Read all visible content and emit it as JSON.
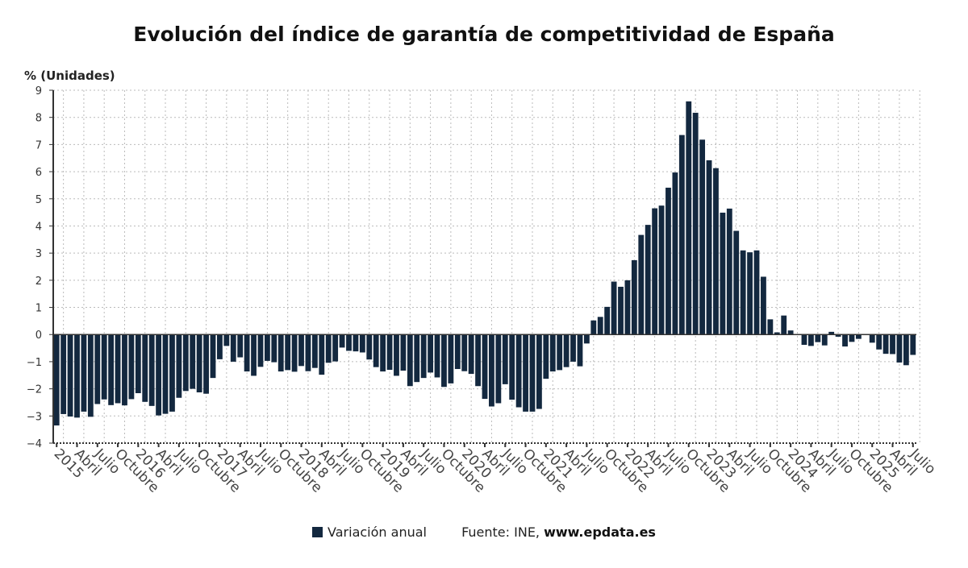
{
  "chart_data": {
    "type": "bar",
    "title": "Evolución del índice de garantía de competitividad de España",
    "ylabel": "% (Unidades)",
    "ylim": [
      -4,
      9
    ],
    "yticks": [
      -4,
      -3,
      -2,
      -1,
      0,
      1,
      2,
      3,
      4,
      5,
      6,
      7,
      8,
      9
    ],
    "grid": true,
    "legend_placement": "bottom",
    "start": "2015-01",
    "end": "2025-07",
    "month_labels": {
      "1": "",
      "4": "Abril",
      "7": "Julio",
      "10": "Octubre"
    },
    "series": [
      {
        "name": "Variación anual",
        "color": "#13283f",
        "values": [
          -3.35,
          -2.93,
          -3.02,
          -3.06,
          -2.84,
          -3.03,
          -2.56,
          -2.39,
          -2.6,
          -2.53,
          -2.61,
          -2.38,
          -2.16,
          -2.48,
          -2.63,
          -2.98,
          -2.92,
          -2.84,
          -2.33,
          -2.08,
          -2.0,
          -2.13,
          -2.18,
          -1.6,
          -0.91,
          -0.42,
          -1.0,
          -0.84,
          -1.36,
          -1.52,
          -1.19,
          -0.97,
          -1.02,
          -1.36,
          -1.31,
          -1.37,
          -1.16,
          -1.35,
          -1.23,
          -1.48,
          -1.04,
          -0.99,
          -0.48,
          -0.6,
          -0.62,
          -0.66,
          -0.92,
          -1.2,
          -1.36,
          -1.3,
          -1.52,
          -1.33,
          -1.9,
          -1.75,
          -1.6,
          -1.4,
          -1.58,
          -1.93,
          -1.8,
          -1.27,
          -1.35,
          -1.45,
          -1.9,
          -2.37,
          -2.65,
          -2.53,
          -1.83,
          -2.4,
          -2.68,
          -2.84,
          -2.84,
          -2.74,
          -1.63,
          -1.36,
          -1.31,
          -1.2,
          -1.0,
          -1.17,
          -0.33,
          0.52,
          0.65,
          1.02,
          1.95,
          1.76,
          2.0,
          2.74,
          3.67,
          4.04,
          4.65,
          4.75,
          5.41,
          5.97,
          7.35,
          8.59,
          8.17,
          7.18,
          6.42,
          6.13,
          4.49,
          4.64,
          3.82,
          3.1,
          3.03,
          3.1,
          2.13,
          0.56,
          0.08,
          0.7,
          0.15,
          0.01,
          -0.38,
          -0.42,
          -0.28,
          -0.4,
          0.1,
          -0.08,
          -0.44,
          -0.27,
          -0.16,
          -0.01,
          -0.3,
          -0.55,
          -0.71,
          -0.72,
          -1.03,
          -1.13,
          -0.75
        ]
      }
    ]
  },
  "legend": {
    "series_label": "Variación anual",
    "source_prefix": "Fuente: INE, ",
    "source_site": "www.epdata.es"
  }
}
